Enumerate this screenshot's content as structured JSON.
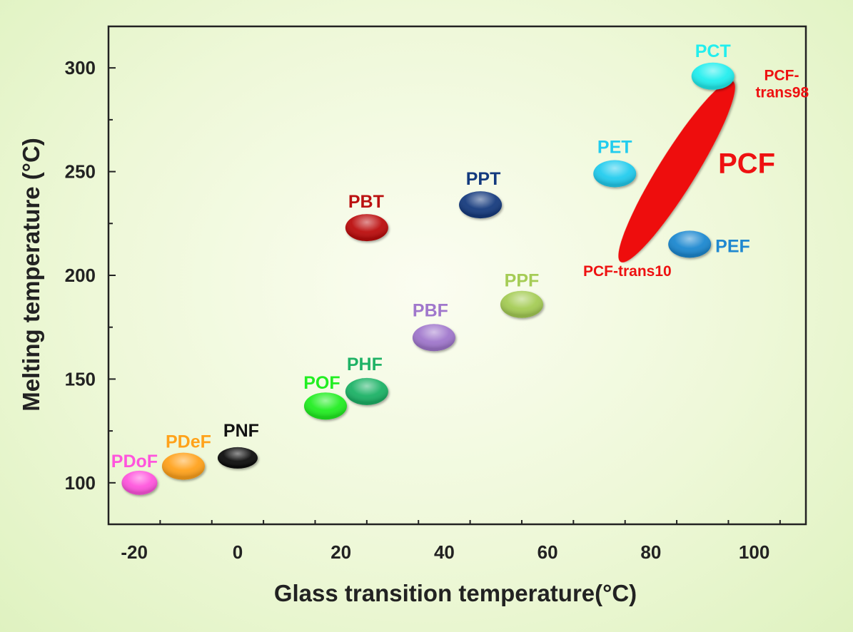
{
  "chart_data": {
    "type": "scatter",
    "xlabel": "Glass transition temperature(°C)",
    "ylabel": "Melting temperature (°C)",
    "xlim": [
      -25,
      110
    ],
    "ylim": [
      80,
      320
    ],
    "xticks": [
      -20,
      0,
      20,
      40,
      60,
      80,
      100
    ],
    "yticks": [
      100,
      150,
      200,
      250,
      300
    ],
    "grid": false,
    "points": [
      {
        "label": "PDoF",
        "x": -19,
        "y": 100,
        "color": "#ff55dd"
      },
      {
        "label": "PDeF",
        "x": -10.5,
        "y": 108,
        "color": "#ffa21a"
      },
      {
        "label": "PNF",
        "x": 0,
        "y": 112,
        "color": "#111111"
      },
      {
        "label": "POF",
        "x": 17,
        "y": 137,
        "color": "#22ee22"
      },
      {
        "label": "PHF",
        "x": 25,
        "y": 144,
        "color": "#1fb266"
      },
      {
        "label": "PBF",
        "x": 38,
        "y": 170,
        "color": "#a077cc"
      },
      {
        "label": "PPF",
        "x": 55,
        "y": 186,
        "color": "#a5cc55"
      },
      {
        "label": "PBT",
        "x": 25,
        "y": 223,
        "color": "#bb1111"
      },
      {
        "label": "PPT",
        "x": 47,
        "y": 234,
        "color": "#133a7e"
      },
      {
        "label": "PET",
        "x": 73,
        "y": 249,
        "color": "#22ccee"
      },
      {
        "label": "PEF",
        "x": 87.5,
        "y": 215,
        "color": "#1f88d0"
      },
      {
        "label": "PCT",
        "x": 92,
        "y": 296,
        "color": "#22eeee"
      }
    ],
    "range_series": {
      "label": "PCF",
      "color": "#ee1111",
      "start": {
        "label": "PCF-trans10",
        "x": 75,
        "y": 210
      },
      "end": {
        "label": "PCF-trans98",
        "x": 95,
        "y": 290
      }
    }
  }
}
